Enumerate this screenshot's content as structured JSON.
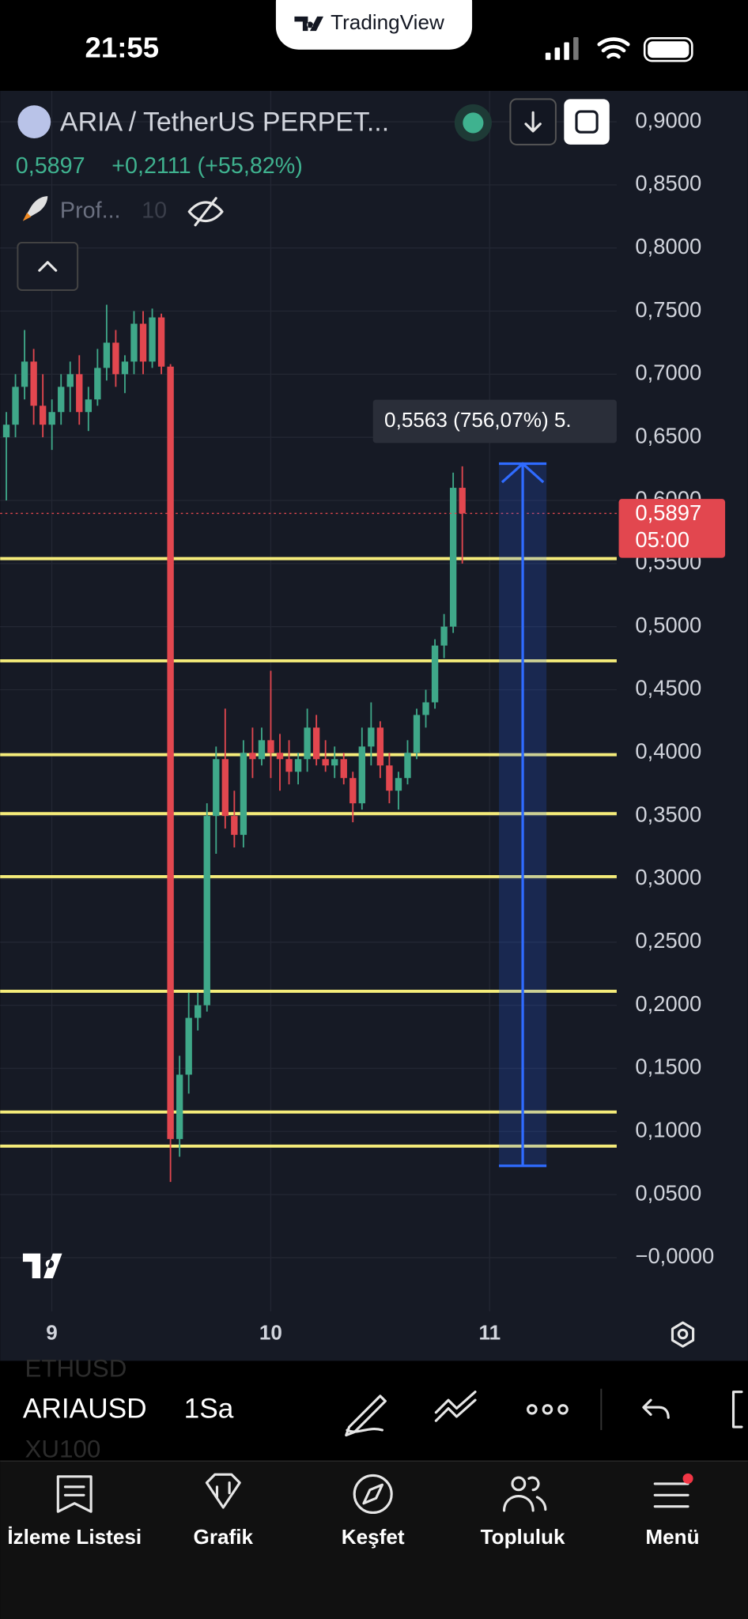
{
  "status": {
    "time": "21:55",
    "brand": "TradingView"
  },
  "header": {
    "symbol": "ARIA / TetherUS PERPET...",
    "price": "0,5897",
    "change": "+0,2111 (+55,82%)",
    "indicator": "Prof...",
    "indicator_value": "10"
  },
  "chart_data": {
    "type": "candlestick",
    "up_color": "#3fa889",
    "down_color": "#e2474f",
    "level_color": "#f5ec7a",
    "ylim": [
      -0.0425,
      0.9245
    ],
    "xlim": [
      8.764,
      11.58
    ],
    "yticks": [
      {
        "value": 0.9,
        "label": "0,9000"
      },
      {
        "value": 0.85,
        "label": "0,8500"
      },
      {
        "value": 0.8,
        "label": "0,8000"
      },
      {
        "value": 0.75,
        "label": "0,7500"
      },
      {
        "value": 0.7,
        "label": "0,7000"
      },
      {
        "value": 0.65,
        "label": "0,6500"
      },
      {
        "value": 0.6,
        "label": "0,6000"
      },
      {
        "value": 0.55,
        "label": "0,5500"
      },
      {
        "value": 0.5,
        "label": "0,5000"
      },
      {
        "value": 0.45,
        "label": "0,4500"
      },
      {
        "value": 0.4,
        "label": "0,4000"
      },
      {
        "value": 0.35,
        "label": "0,3500"
      },
      {
        "value": 0.3,
        "label": "0,3000"
      },
      {
        "value": 0.25,
        "label": "0,2500"
      },
      {
        "value": 0.2,
        "label": "0,2000"
      },
      {
        "value": 0.15,
        "label": "0,1500"
      },
      {
        "value": 0.1,
        "label": "0,1000"
      },
      {
        "value": 0.05,
        "label": "0,0500"
      },
      {
        "value": 0,
        "label": "−0,0000"
      }
    ],
    "xticks": [
      9,
      10,
      11
    ],
    "candles": [
      [
        0.65,
        0.67,
        0.6,
        0.66
      ],
      [
        0.66,
        0.7,
        0.65,
        0.69
      ],
      [
        0.69,
        0.735,
        0.68,
        0.71
      ],
      [
        0.71,
        0.72,
        0.66,
        0.675
      ],
      [
        0.675,
        0.7,
        0.65,
        0.66
      ],
      [
        0.66,
        0.68,
        0.64,
        0.67
      ],
      [
        0.67,
        0.7,
        0.66,
        0.69
      ],
      [
        0.69,
        0.71,
        0.67,
        0.7
      ],
      [
        0.7,
        0.715,
        0.66,
        0.67
      ],
      [
        0.67,
        0.69,
        0.655,
        0.68
      ],
      [
        0.68,
        0.72,
        0.675,
        0.705
      ],
      [
        0.705,
        0.755,
        0.695,
        0.725
      ],
      [
        0.725,
        0.735,
        0.69,
        0.7
      ],
      [
        0.7,
        0.715,
        0.685,
        0.71
      ],
      [
        0.71,
        0.75,
        0.7,
        0.74
      ],
      [
        0.74,
        0.75,
        0.7,
        0.71
      ],
      [
        0.71,
        0.752,
        0.705,
        0.745
      ],
      [
        0.745,
        0.748,
        0.7,
        0.706
      ],
      [
        0.706,
        0.708,
        0.06,
        0.094
      ],
      [
        0.094,
        0.16,
        0.08,
        0.145
      ],
      [
        0.145,
        0.21,
        0.13,
        0.19
      ],
      [
        0.19,
        0.21,
        0.18,
        0.2
      ],
      [
        0.2,
        0.36,
        0.195,
        0.35
      ],
      [
        0.35,
        0.405,
        0.32,
        0.395
      ],
      [
        0.395,
        0.435,
        0.34,
        0.35
      ],
      [
        0.35,
        0.37,
        0.325,
        0.335
      ],
      [
        0.335,
        0.41,
        0.325,
        0.4
      ],
      [
        0.4,
        0.42,
        0.38,
        0.395
      ],
      [
        0.395,
        0.42,
        0.39,
        0.41
      ],
      [
        0.41,
        0.465,
        0.38,
        0.4
      ],
      [
        0.4,
        0.415,
        0.37,
        0.395
      ],
      [
        0.395,
        0.41,
        0.375,
        0.385
      ],
      [
        0.385,
        0.4,
        0.375,
        0.395
      ],
      [
        0.395,
        0.435,
        0.385,
        0.42
      ],
      [
        0.42,
        0.43,
        0.39,
        0.395
      ],
      [
        0.395,
        0.41,
        0.385,
        0.39
      ],
      [
        0.39,
        0.405,
        0.38,
        0.395
      ],
      [
        0.395,
        0.4,
        0.375,
        0.38
      ],
      [
        0.38,
        0.385,
        0.345,
        0.36
      ],
      [
        0.36,
        0.42,
        0.355,
        0.405
      ],
      [
        0.405,
        0.44,
        0.39,
        0.42
      ],
      [
        0.42,
        0.425,
        0.38,
        0.39
      ],
      [
        0.39,
        0.4,
        0.36,
        0.37
      ],
      [
        0.37,
        0.385,
        0.355,
        0.38
      ],
      [
        0.38,
        0.41,
        0.375,
        0.4
      ],
      [
        0.4,
        0.435,
        0.395,
        0.43
      ],
      [
        0.43,
        0.45,
        0.42,
        0.44
      ],
      [
        0.44,
        0.49,
        0.435,
        0.485
      ],
      [
        0.485,
        0.51,
        0.475,
        0.5
      ],
      [
        0.5,
        0.622,
        0.495,
        0.61
      ],
      [
        0.61,
        0.627,
        0.55,
        0.5897
      ]
    ],
    "levels": [
      0.5539,
      0.4729,
      0.3985,
      0.3518,
      0.3019,
      0.2111,
      0.1154,
      0.0884
    ],
    "last_price": 0.5897,
    "last_price_label": "0,5897",
    "countdown": "05:00",
    "measure": {
      "from": 0.0728,
      "to": 0.6291,
      "label": "0,5563 (756,07%) 5."
    }
  },
  "toolbar": {
    "ghost_top": "ETHUSD",
    "symbol": "ARIAUSD",
    "ghost_bottom": "XU100",
    "interval": "1Sa"
  },
  "tabs": [
    "İzleme Listesi",
    "Grafik",
    "Keşfet",
    "Topluluk",
    "Menü"
  ]
}
